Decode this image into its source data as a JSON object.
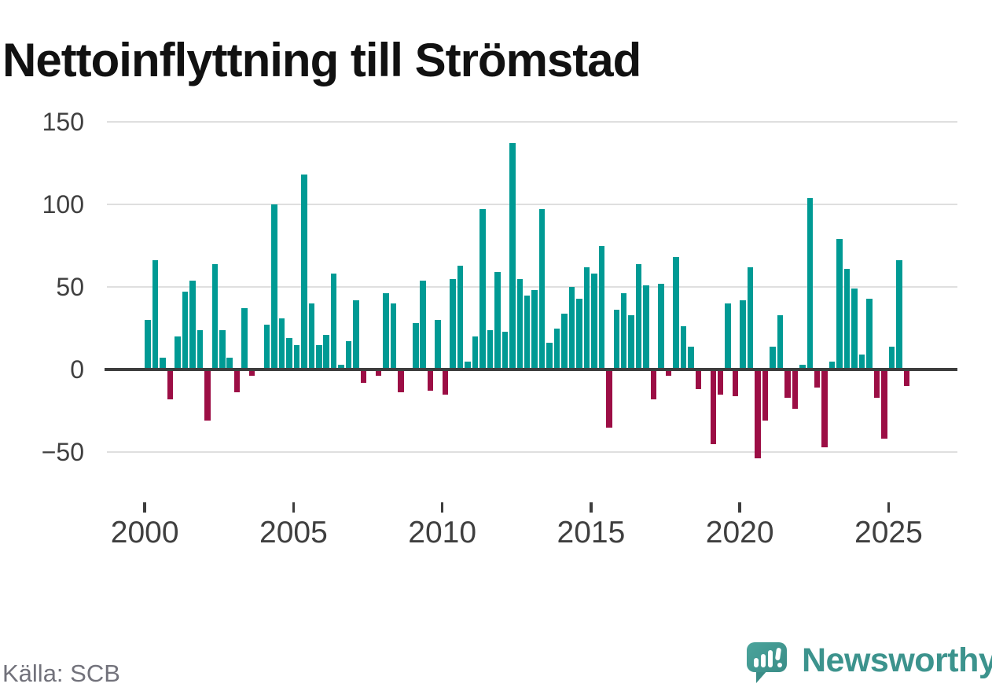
{
  "title": "Nettoinflyttning till Strömstad",
  "source": "Källa: SCB",
  "branding": {
    "logo_text": "Newsworthy",
    "logo_icon": "bar-chart-speech-bubble-icon"
  },
  "colors": {
    "positive": "#009a94",
    "negative": "#9c0e45",
    "axis": "#3d3d3d",
    "grid": "#dfdfdf",
    "tick_text": "#3f3f3f",
    "brand_teal": "#3c938d"
  },
  "chart_data": {
    "type": "bar",
    "title": "Nettoinflyttning till Strömstad",
    "ylabel": "",
    "xlabel": "",
    "grid": "horizontal",
    "legend": "none",
    "frequency": "quarterly",
    "start_period": "2000Q1",
    "end_period": "2025Q3",
    "ylim": [
      -62,
      162
    ],
    "y_ticks": [
      150,
      100,
      50,
      0,
      -50
    ],
    "y_tick_labels": [
      "150",
      "100",
      "50",
      "0",
      "−50"
    ],
    "x_tick_labels": [
      "2000",
      "2005",
      "2010",
      "2015",
      "2020",
      "2025"
    ],
    "values": [
      30,
      66,
      7,
      -18,
      20,
      47,
      54,
      24,
      -31,
      64,
      24,
      7,
      -14,
      37,
      -4,
      0,
      27,
      100,
      31,
      19,
      15,
      118,
      40,
      15,
      21,
      58,
      3,
      17,
      42,
      -8,
      0,
      -4,
      46,
      40,
      -14,
      0,
      28,
      54,
      -13,
      30,
      -15,
      55,
      63,
      5,
      20,
      97,
      24,
      59,
      23,
      137,
      55,
      45,
      48,
      97,
      16,
      25,
      34,
      50,
      43,
      62,
      58,
      75,
      -35,
      36,
      46,
      33,
      64,
      51,
      -18,
      52,
      -4,
      68,
      26,
      14,
      -12,
      0,
      -45,
      -15,
      40,
      -16,
      42,
      62,
      -54,
      -31,
      14,
      33,
      -17,
      -24,
      3,
      104,
      -11,
      -47,
      5,
      79,
      61,
      49,
      9,
      43,
      -17,
      -42,
      14,
      66,
      -10
    ]
  }
}
